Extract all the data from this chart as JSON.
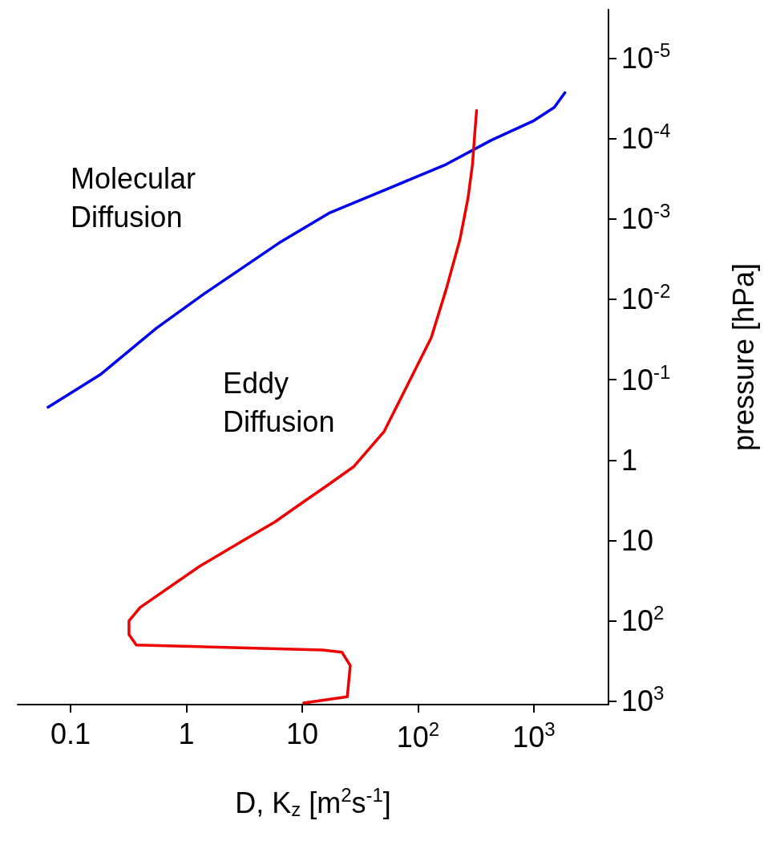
{
  "chart_data": {
    "type": "line",
    "xlabel": "D, K$_{z}$ [m$^{2}$s$^{-1}$]",
    "ylabel": "pressure [hPa]",
    "log": "xy",
    "marker": "none",
    "line_style": "solid",
    "xlim": [
      0.035,
      4400
    ],
    "xticks": [
      0.1,
      1,
      10,
      {
        "value": 100,
        "label": "10$^{2}$"
      },
      {
        "value": 1000,
        "label": "10$^{3}$"
      }
    ],
    "ylim": [
      1100,
      2.5e-06
    ],
    "yticks": [
      {
        "value": 1e-05,
        "label": "10$^{-5}$"
      },
      {
        "value": 0.0001,
        "label": "10$^{-4}$"
      },
      {
        "value": 0.001,
        "label": "10$^{-3}$"
      },
      {
        "value": 0.01,
        "label": "10$^{-2}$"
      },
      {
        "value": 0.1,
        "label": "10$^{-1}$"
      },
      1,
      10,
      {
        "value": 100,
        "label": "10$^{2}$"
      },
      {
        "value": 1000,
        "label": "10$^{3}$"
      }
    ],
    "series": [
      {
        "name": "Molecular Diffusion",
        "color": "#0000ee",
        "x": [
          0.064,
          0.18,
          0.55,
          1.4,
          6.3,
          17,
          60,
          175,
          430,
          1000,
          1500,
          1850
        ],
        "values": [
          0.22,
          0.087,
          0.023,
          0.0087,
          0.002,
          0.00085,
          0.0004,
          0.00021,
          0.000105,
          6e-05,
          4.1e-05,
          2.7e-05
        ]
      },
      {
        "name": "Eddy Diffusion",
        "color": "#ee0000",
        "x": [
          10.3,
          24.5,
          26,
          22,
          15,
          0.37,
          0.32,
          0.32,
          0.4,
          1.3,
          3.1,
          5.8,
          10,
          17,
          28,
          51,
          130,
          175,
          230,
          270,
          295,
          310,
          320
        ],
        "values": [
          1050,
          880,
          360,
          245,
          230,
          200,
          148,
          100,
          68,
          21,
          10,
          5.9,
          3.4,
          2,
          1.2,
          0.44,
          0.03,
          0.0075,
          0.0018,
          0.00055,
          0.00021,
          8e-05,
          4.5e-05
        ]
      }
    ]
  }
}
